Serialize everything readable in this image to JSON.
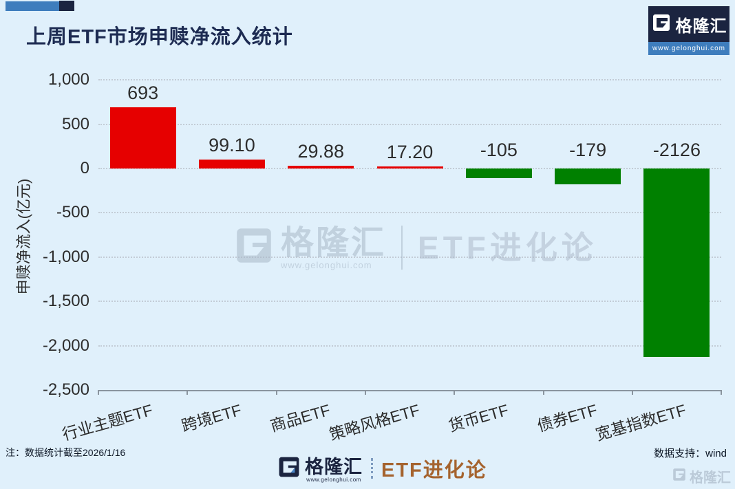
{
  "title": "上周ETF市场申赎净流入统计",
  "brand": {
    "name": "格隆汇",
    "url": "www.gelonghui.com",
    "partner": "ETF进化论"
  },
  "watermark": {
    "name": "格隆汇",
    "url": "www.gelonghui.com",
    "partner": "ETF进化论"
  },
  "footer": {
    "note": "注：数据统计截至2026/1/16",
    "data_support": "数据支持：wind",
    "logo_name": "格隆汇",
    "logo_url": "www.gelonghui.com",
    "logo_partner": "ETF进化论",
    "corner_watermark_name": "格隆汇"
  },
  "colors": {
    "background": "#e0f0fb",
    "title_navy": "#1d2b52",
    "brand_navy": "#1b2440",
    "brand_blue": "#3e7dbd",
    "partner_brown": "#a5632e",
    "positive_bar": "#e60000",
    "negative_bar": "#008000",
    "gridline": "#c3ccd6",
    "axis": "#8a949e",
    "watermark_gray": "#a9b8c8"
  },
  "chart_data": {
    "type": "bar",
    "title": "上周ETF市场申赎净流入统计",
    "categories": [
      "行业主题ETF",
      "跨境ETF",
      "商品ETF",
      "策略风格ETF",
      "货币ETF",
      "债券ETF",
      "宽基指数ETF"
    ],
    "values": [
      693,
      99.1,
      29.88,
      17.2,
      -105,
      -179,
      -2126
    ],
    "value_labels": [
      "693",
      "99.10",
      "29.88",
      "17.20",
      "-105",
      "-179",
      "-2126"
    ],
    "ylabel": "申赎净流入(亿元)",
    "xlabel": "",
    "ylim": [
      -2500,
      1000
    ],
    "ytick_step": 500,
    "yticks": [
      "1,000",
      "500",
      "0",
      "-500",
      "-1,000",
      "-1,500",
      "-2,000",
      "-2,500"
    ],
    "ytick_values": [
      1000,
      500,
      0,
      -500,
      -1000,
      -1500,
      -2000,
      -2500
    ],
    "grid": "horizontal-dotted",
    "legend": "none",
    "positive_color": "#e60000",
    "negative_color": "#008000"
  }
}
